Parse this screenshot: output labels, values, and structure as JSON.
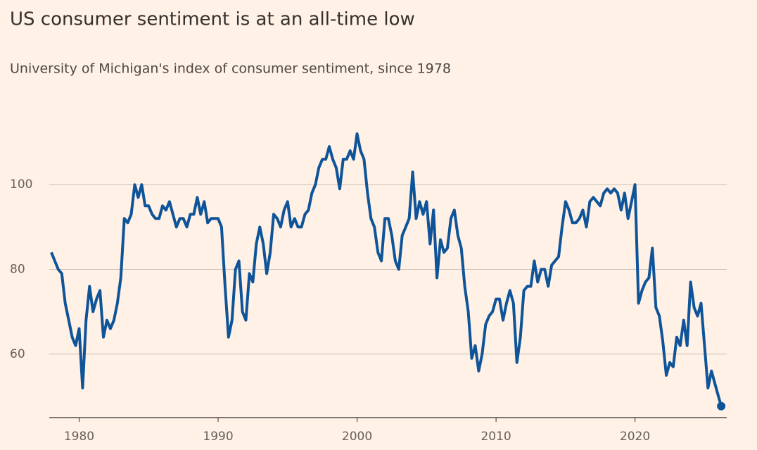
{
  "chart_data": {
    "type": "line",
    "title": "US consumer sentiment is at an all-time low",
    "subtitle": "University of Michigan's index of consumer sentiment, since 1978",
    "x": [
      1978,
      1978.25,
      1978.5,
      1978.75,
      1979,
      1979.25,
      1979.5,
      1979.75,
      1980,
      1980.25,
      1980.5,
      1980.75,
      1981,
      1981.25,
      1981.5,
      1981.75,
      1982,
      1982.25,
      1982.5,
      1982.75,
      1983,
      1983.25,
      1983.5,
      1983.75,
      1984,
      1984.25,
      1984.5,
      1984.75,
      1985,
      1985.25,
      1985.5,
      1985.75,
      1986,
      1986.25,
      1986.5,
      1986.75,
      1987,
      1987.25,
      1987.5,
      1987.75,
      1988,
      1988.25,
      1988.5,
      1988.75,
      1989,
      1989.25,
      1989.5,
      1989.75,
      1990,
      1990.25,
      1990.5,
      1990.75,
      1991,
      1991.25,
      1991.5,
      1991.75,
      1992,
      1992.25,
      1992.5,
      1992.75,
      1993,
      1993.25,
      1993.5,
      1993.75,
      1994,
      1994.25,
      1994.5,
      1994.75,
      1995,
      1995.25,
      1995.5,
      1995.75,
      1996,
      1996.25,
      1996.5,
      1996.75,
      1997,
      1997.25,
      1997.5,
      1997.75,
      1998,
      1998.25,
      1998.5,
      1998.75,
      1999,
      1999.25,
      1999.5,
      1999.75,
      2000,
      2000.25,
      2000.5,
      2000.75,
      2001,
      2001.25,
      2001.5,
      2001.75,
      2002,
      2002.25,
      2002.5,
      2002.75,
      2003,
      2003.25,
      2003.5,
      2003.75,
      2004,
      2004.25,
      2004.5,
      2004.75,
      2005,
      2005.25,
      2005.5,
      2005.75,
      2006,
      2006.25,
      2006.5,
      2006.75,
      2007,
      2007.25,
      2007.5,
      2007.75,
      2008,
      2008.25,
      2008.5,
      2008.75,
      2009,
      2009.25,
      2009.5,
      2009.75,
      2010,
      2010.25,
      2010.5,
      2010.75,
      2011,
      2011.25,
      2011.5,
      2011.75,
      2012,
      2012.25,
      2012.5,
      2012.75,
      2013,
      2013.25,
      2013.5,
      2013.75,
      2014,
      2014.25,
      2014.5,
      2014.75,
      2015,
      2015.25,
      2015.5,
      2015.75,
      2016,
      2016.25,
      2016.5,
      2016.75,
      2017,
      2017.25,
      2017.5,
      2017.75,
      2018,
      2018.25,
      2018.5,
      2018.75,
      2019,
      2019.25,
      2019.5,
      2019.75,
      2020,
      2020.25,
      2020.5,
      2020.75,
      2021,
      2021.25,
      2021.5,
      2021.75,
      2022,
      2022.25,
      2022.5,
      2022.75,
      2023,
      2023.25,
      2023.5,
      2023.75,
      2024,
      2024.25,
      2024.5,
      2024.75,
      2025,
      2025.25,
      2025.5,
      2025.75,
      2026.2
    ],
    "series": [
      {
        "name": "Index of consumer sentiment",
        "color": "#0f5499",
        "values": [
          84,
          82,
          80,
          79,
          72,
          68,
          64,
          62,
          66,
          52,
          68,
          76,
          70,
          73,
          75,
          64,
          68,
          66,
          68,
          72,
          78,
          92,
          91,
          93,
          100,
          97,
          100,
          95,
          95,
          93,
          92,
          92,
          95,
          94,
          96,
          93,
          90,
          92,
          92,
          90,
          93,
          93,
          97,
          93,
          96,
          91,
          92,
          92,
          92,
          90,
          76,
          64,
          68,
          80,
          82,
          70,
          68,
          79,
          77,
          86,
          90,
          86,
          79,
          84,
          93,
          92,
          90,
          94,
          96,
          90,
          92,
          90,
          90,
          93,
          94,
          98,
          100,
          104,
          106,
          106,
          109,
          106,
          104,
          99,
          106,
          106,
          108,
          106,
          112,
          108,
          106,
          98,
          92,
          90,
          84,
          82,
          92,
          92,
          88,
          82,
          80,
          88,
          90,
          92,
          103,
          92,
          96,
          93,
          96,
          86,
          94,
          78,
          87,
          84,
          85,
          92,
          94,
          88,
          85,
          76,
          70,
          59,
          62,
          56,
          60,
          67,
          69,
          70,
          73,
          73,
          68,
          72,
          75,
          72,
          58,
          64,
          75,
          76,
          76,
          82,
          77,
          80,
          80,
          76,
          81,
          82,
          83,
          90,
          96,
          94,
          91,
          91,
          92,
          94,
          90,
          96,
          97,
          96,
          95,
          98,
          99,
          98,
          99,
          98,
          94,
          98,
          92,
          96,
          100,
          72,
          75,
          77,
          78,
          85,
          71,
          69,
          63,
          55,
          58,
          57,
          64,
          62,
          68,
          62,
          77,
          71,
          69,
          72,
          62,
          52,
          56,
          53,
          47.7
        ]
      }
    ],
    "xlim": [
      1977.85,
      2026.6
    ],
    "xticks": [
      1980,
      1990,
      2000,
      2010,
      2020
    ],
    "ylim": [
      45,
      115
    ],
    "yticks": [
      60,
      80,
      100
    ],
    "grid": true
  }
}
